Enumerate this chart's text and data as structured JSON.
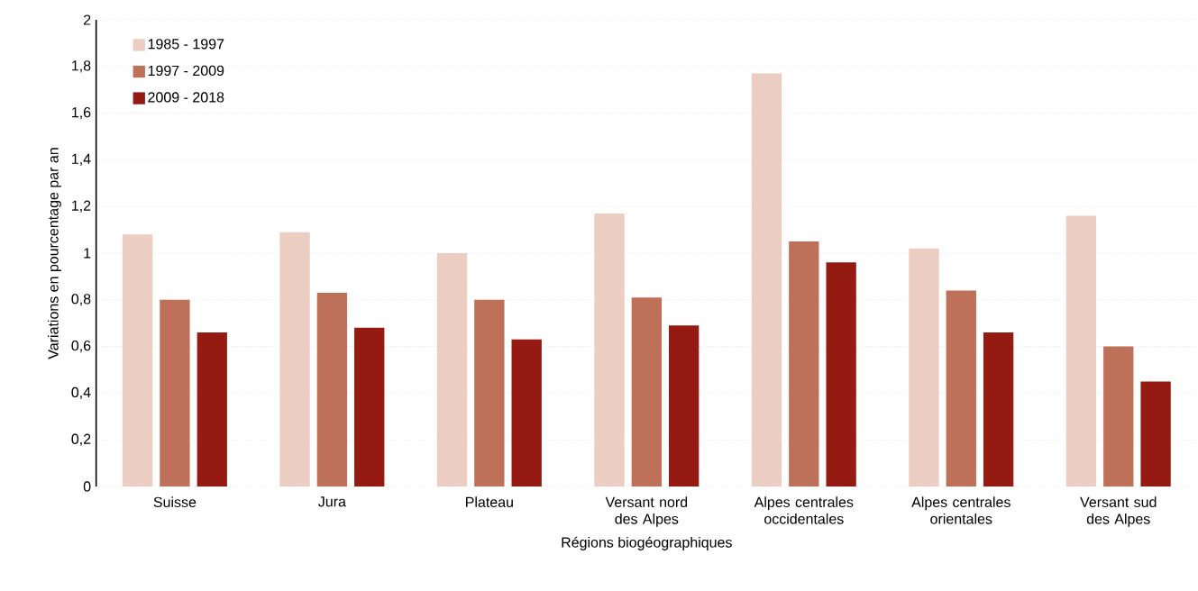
{
  "chart_data": {
    "type": "bar",
    "xlabel": "Régions biogéographiques",
    "ylabel": "Variations en pourcentage par an",
    "categories": [
      "Suisse",
      "Jura",
      "Plateau",
      "Versant nord des Alpes",
      "Alpes centrales occidentales",
      "Alpes centrales orientales",
      "Versant sud des Alpes"
    ],
    "series": [
      {
        "name": "1985 - 1997",
        "color": "#ebcdc1",
        "values": [
          1.08,
          1.09,
          1.0,
          1.17,
          1.77,
          1.02,
          1.16
        ]
      },
      {
        "name": "1997 - 2009",
        "color": "#bf7059",
        "values": [
          0.8,
          0.83,
          0.8,
          0.81,
          1.05,
          0.84,
          0.6
        ]
      },
      {
        "name": "2009 - 2018",
        "color": "#951b12",
        "values": [
          0.66,
          0.68,
          0.63,
          0.69,
          0.96,
          0.66,
          0.45
        ]
      }
    ],
    "ylim": [
      0,
      2
    ],
    "yticks": [
      0,
      {
        "value": 0.2,
        "label": "0,2"
      },
      {
        "value": 0.4,
        "label": "0,4"
      },
      {
        "value": 0.6,
        "label": "0,6"
      },
      {
        "value": 0.8,
        "label": "0,8"
      },
      1,
      {
        "value": 1.2,
        "label": "1,2"
      },
      {
        "value": 1.4,
        "label": "1,4"
      },
      {
        "value": 1.6,
        "label": "1,6"
      },
      {
        "value": 1.8,
        "label": "1,8"
      },
      2
    ],
    "grid": "y",
    "legend": "top left"
  }
}
